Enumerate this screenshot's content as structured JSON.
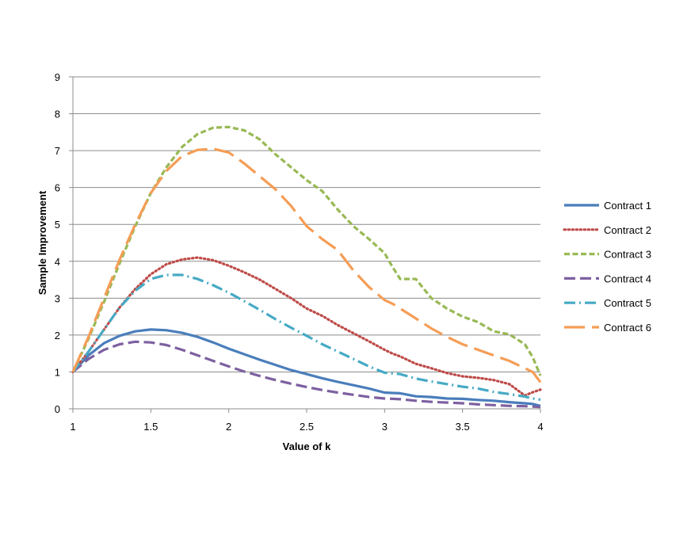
{
  "chart_data": {
    "type": "line",
    "title": "",
    "xlabel": "Value of k",
    "ylabel": "Sample Improvement",
    "xlim": [
      1,
      4
    ],
    "ylim": [
      0,
      9
    ],
    "xticks": [
      1,
      1.5,
      2,
      2.5,
      3,
      3.5,
      4
    ],
    "xtick_labels": [
      "1",
      "1.5",
      "2",
      "2.5",
      "3",
      "3.5",
      "4"
    ],
    "yticks": [
      0,
      1,
      2,
      3,
      4,
      5,
      6,
      7,
      8,
      9
    ],
    "ytick_labels": [
      "0",
      "1",
      "2",
      "3",
      "4",
      "5",
      "6",
      "7",
      "8",
      "9"
    ],
    "grid": "horizontal",
    "legend_position": "right",
    "x": [
      1.0,
      1.1,
      1.2,
      1.3,
      1.4,
      1.5,
      1.6,
      1.7,
      1.8,
      1.9,
      2.0,
      2.1,
      2.2,
      2.3,
      2.4,
      2.5,
      2.6,
      2.7,
      2.8,
      2.9,
      3.0,
      3.05,
      3.1,
      3.2,
      3.3,
      3.4,
      3.5,
      3.6,
      3.7,
      3.8,
      3.9,
      3.95,
      4.0
    ],
    "series": [
      {
        "name": "Contract 1",
        "color": "#4a7ebb",
        "dash": "solid",
        "values": [
          1.0,
          1.45,
          1.78,
          1.98,
          2.1,
          2.15,
          2.13,
          2.06,
          1.95,
          1.8,
          1.63,
          1.48,
          1.33,
          1.19,
          1.05,
          0.94,
          0.83,
          0.73,
          0.64,
          0.55,
          0.44,
          0.43,
          0.42,
          0.34,
          0.32,
          0.28,
          0.27,
          0.24,
          0.22,
          0.18,
          0.15,
          0.13,
          0.08
        ]
      },
      {
        "name": "Contract 2",
        "color": "#be4b48",
        "dash": "dot",
        "values": [
          1.0,
          1.55,
          2.15,
          2.75,
          3.25,
          3.65,
          3.92,
          4.05,
          4.1,
          4.03,
          3.88,
          3.7,
          3.5,
          3.25,
          3.0,
          2.72,
          2.52,
          2.27,
          2.05,
          1.83,
          1.6,
          1.5,
          1.42,
          1.22,
          1.1,
          0.97,
          0.88,
          0.84,
          0.78,
          0.67,
          0.36,
          0.45,
          0.52
        ]
      },
      {
        "name": "Contract 3",
        "color": "#98b954",
        "dash": "dash",
        "values": [
          1.0,
          1.9,
          2.9,
          3.95,
          4.95,
          5.85,
          6.55,
          7.1,
          7.45,
          7.62,
          7.64,
          7.55,
          7.3,
          6.9,
          6.55,
          6.2,
          5.9,
          5.4,
          4.95,
          4.6,
          4.22,
          3.85,
          3.52,
          3.52,
          3.0,
          2.72,
          2.5,
          2.35,
          2.1,
          2.02,
          1.75,
          1.4,
          0.9
        ]
      },
      {
        "name": "Contract 4",
        "color": "#7d60a0",
        "dash": "longdash",
        "values": [
          1.0,
          1.35,
          1.6,
          1.75,
          1.82,
          1.8,
          1.73,
          1.6,
          1.45,
          1.3,
          1.15,
          1.01,
          0.89,
          0.78,
          0.68,
          0.59,
          0.51,
          0.44,
          0.38,
          0.32,
          0.28,
          0.27,
          0.26,
          0.22,
          0.19,
          0.17,
          0.15,
          0.12,
          0.1,
          0.08,
          0.07,
          0.06,
          0.05
        ]
      },
      {
        "name": "Contract 5",
        "color": "#46aac5",
        "dash": "dashdot",
        "values": [
          1.0,
          1.55,
          2.15,
          2.75,
          3.2,
          3.52,
          3.63,
          3.63,
          3.52,
          3.35,
          3.15,
          2.92,
          2.68,
          2.43,
          2.2,
          1.98,
          1.75,
          1.55,
          1.35,
          1.15,
          0.98,
          0.96,
          0.94,
          0.82,
          0.74,
          0.67,
          0.6,
          0.55,
          0.46,
          0.4,
          0.33,
          0.28,
          0.25
        ]
      },
      {
        "name": "Contract 6",
        "color": "#f59d56",
        "dash": "longerdash",
        "values": [
          1.0,
          1.95,
          3.0,
          4.05,
          5.0,
          5.85,
          6.45,
          6.85,
          7.02,
          7.05,
          6.95,
          6.65,
          6.3,
          5.95,
          5.5,
          4.95,
          4.6,
          4.3,
          3.75,
          3.3,
          2.95,
          2.85,
          2.72,
          2.45,
          2.18,
          1.95,
          1.75,
          1.6,
          1.45,
          1.3,
          1.1,
          1.0,
          0.72
        ]
      }
    ]
  }
}
